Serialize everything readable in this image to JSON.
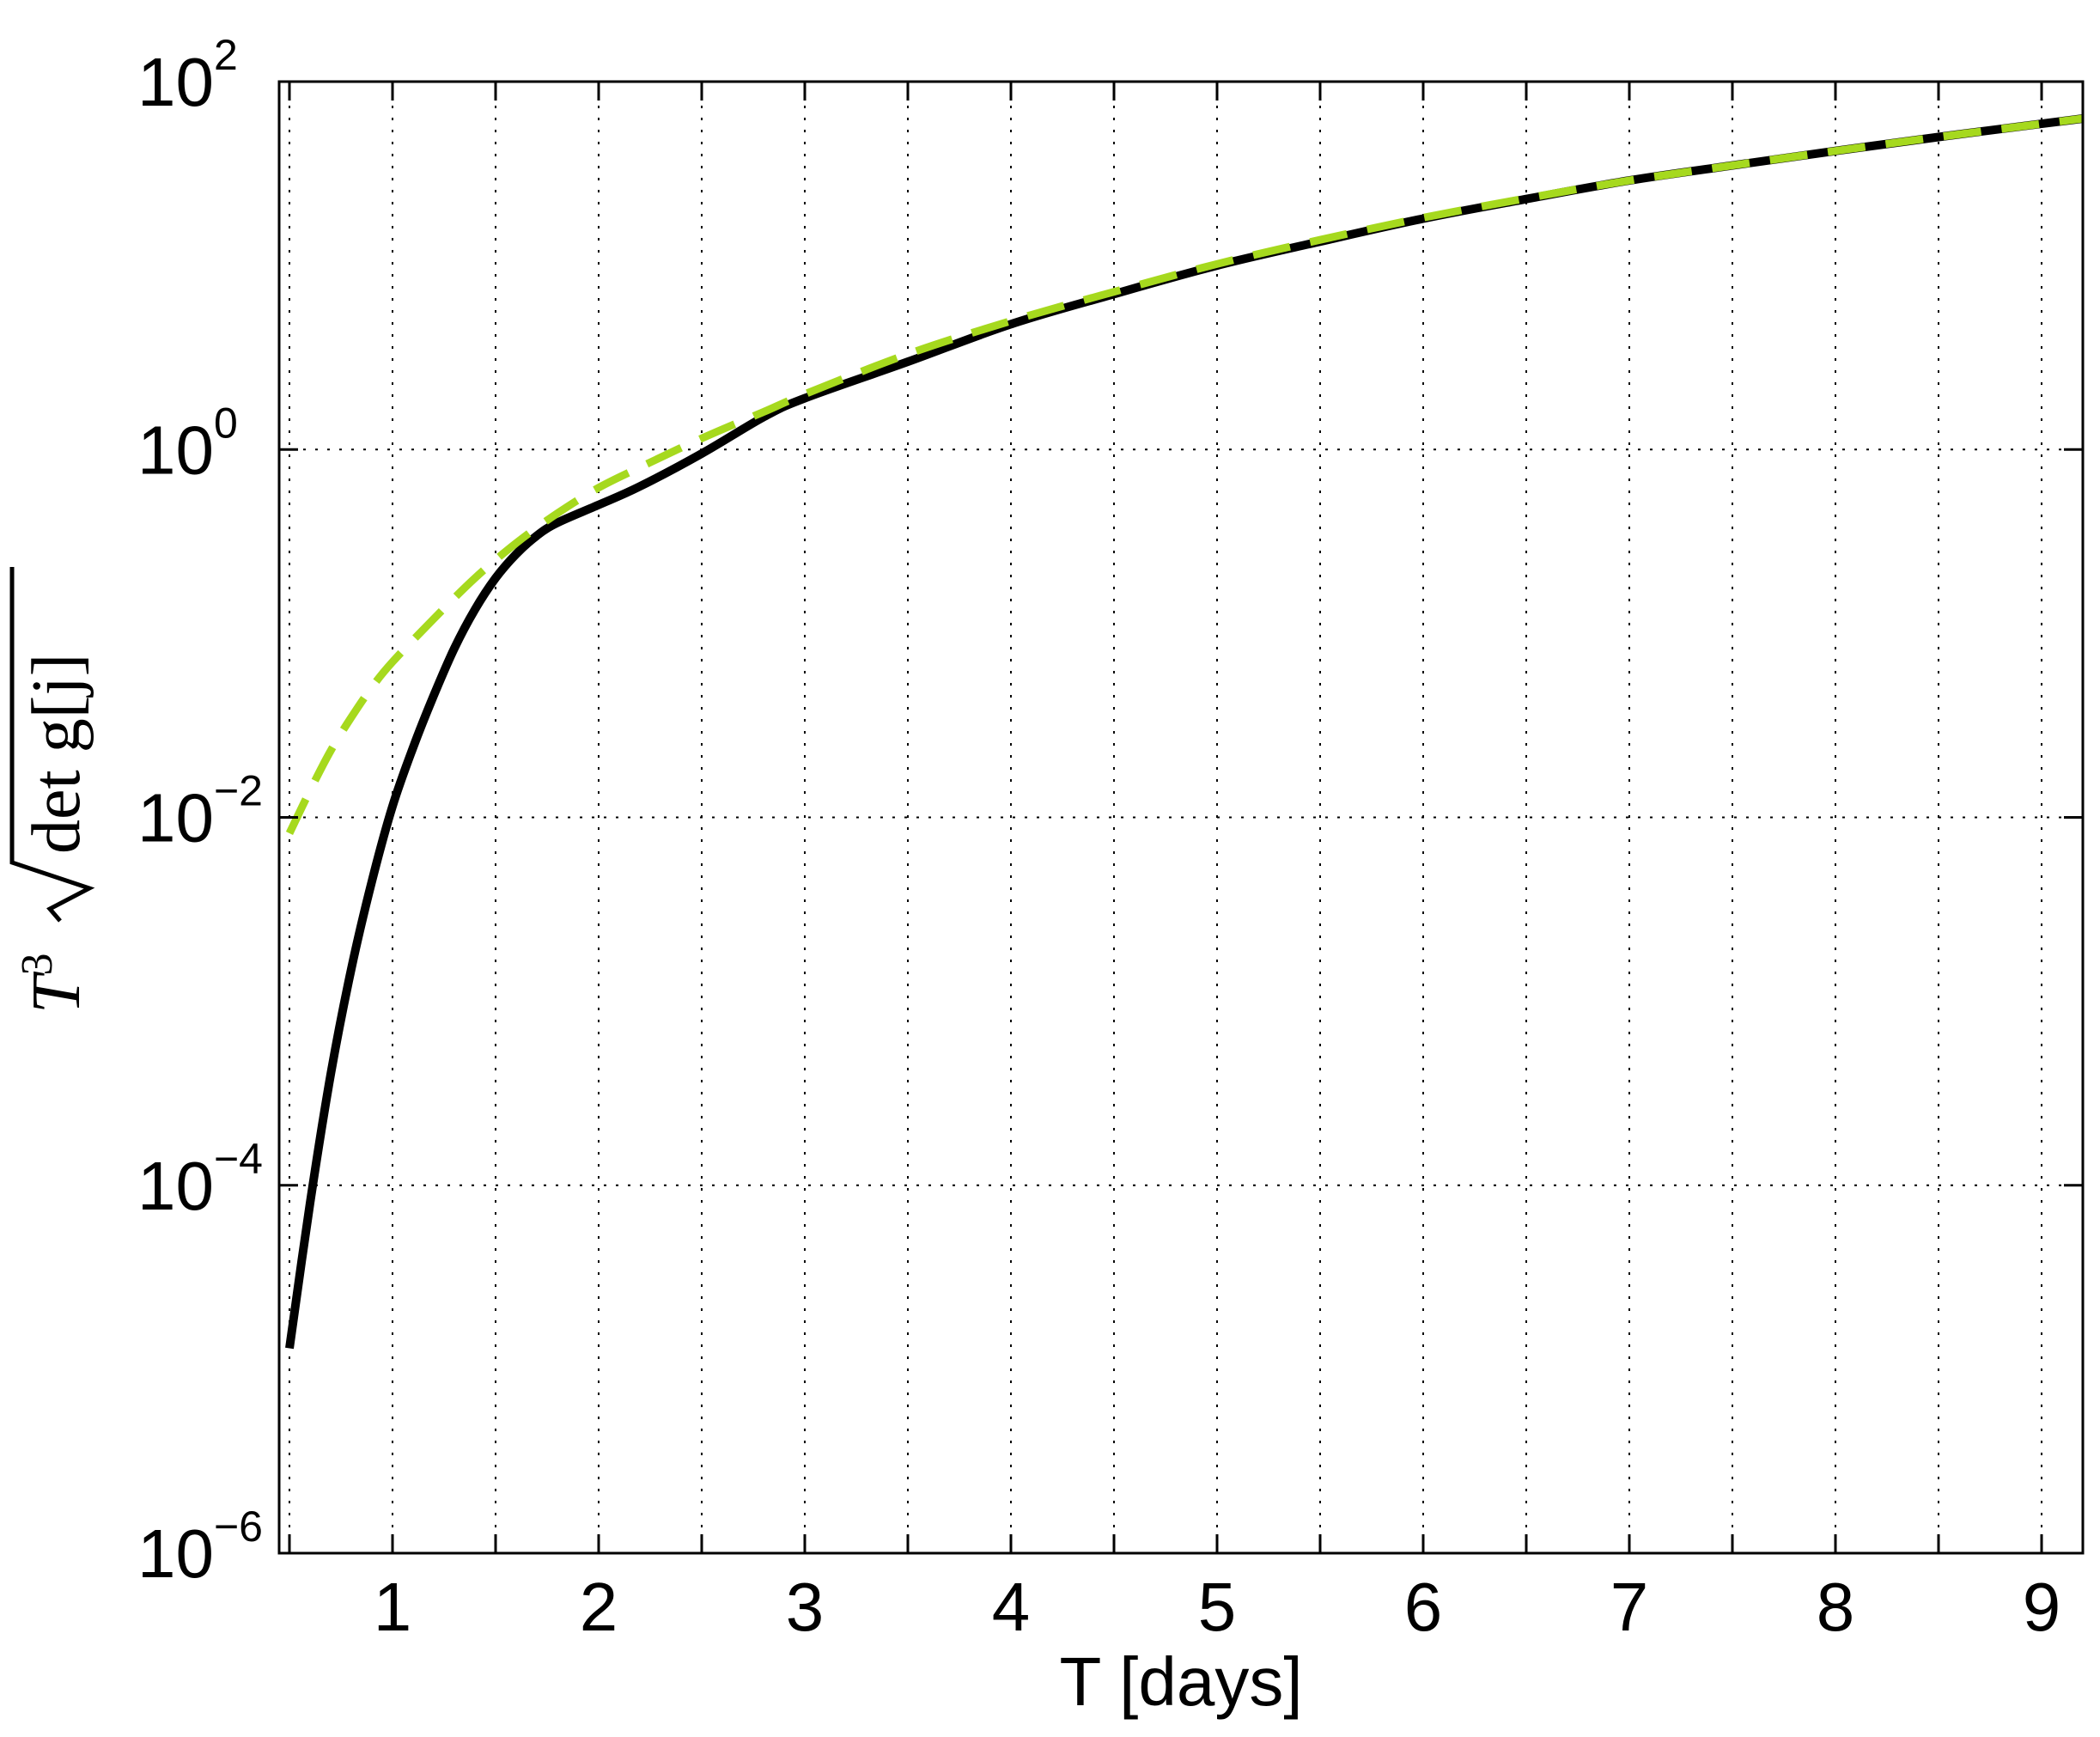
{
  "chart_data": {
    "type": "line",
    "xlabel": "T [days]",
    "ylabel": {
      "base": "T",
      "exponent": "3",
      "radicand": "det g[j]"
    },
    "xlim": [
      0.45,
      9.2
    ],
    "ylim": [
      1e-06,
      100
    ],
    "yscale": "log",
    "grid": true,
    "grid_style": "dotted",
    "x_ticks": [
      {
        "value": 1,
        "label": "1"
      },
      {
        "value": 2,
        "label": "2"
      },
      {
        "value": 3,
        "label": "3"
      },
      {
        "value": 4,
        "label": "4"
      },
      {
        "value": 5,
        "label": "5"
      },
      {
        "value": 6,
        "label": "6"
      },
      {
        "value": 7,
        "label": "7"
      },
      {
        "value": 8,
        "label": "8"
      },
      {
        "value": 9,
        "label": "9"
      }
    ],
    "x_minor_ticks": [
      0.5,
      1.5,
      2.5,
      3.5,
      4.5,
      5.5,
      6.5,
      7.5,
      8.5
    ],
    "y_ticks": [
      {
        "value": 1e-06,
        "base": "10",
        "exp": "−6"
      },
      {
        "value": 0.0001,
        "base": "10",
        "exp": "−4"
      },
      {
        "value": 0.01,
        "base": "10",
        "exp": "−2"
      },
      {
        "value": 1,
        "base": "10",
        "exp": "0"
      },
      {
        "value": 100,
        "base": "10",
        "exp": "2"
      }
    ],
    "series": [
      {
        "style": "solid",
        "color": "#000000",
        "x": [
          0.5,
          0.6,
          0.7,
          0.8,
          0.9,
          1.0,
          1.1,
          1.2,
          1.3,
          1.4,
          1.5,
          1.6,
          1.7,
          1.8,
          2.0,
          2.2,
          2.5,
          2.8,
          3.0,
          3.5,
          4.0,
          4.5,
          5.0,
          5.5,
          6.0,
          6.5,
          7.0,
          7.5,
          8.0,
          8.5,
          9.0,
          9.2
        ],
        "y": [
          1.3e-05,
          8e-05,
          0.0004,
          0.0015,
          0.0045,
          0.0115,
          0.024,
          0.046,
          0.083,
          0.135,
          0.2,
          0.27,
          0.34,
          0.4,
          0.5,
          0.63,
          0.95,
          1.5,
          1.9,
          3.0,
          4.8,
          7.0,
          10,
          13.5,
          18,
          23,
          29,
          35,
          42,
          50,
          59,
          63
        ]
      },
      {
        "style": "dashed",
        "color": "#a6d91e",
        "x": [
          0.5,
          0.6,
          0.7,
          0.8,
          0.9,
          1.0,
          1.2,
          1.4,
          1.6,
          1.8,
          2.0,
          2.2,
          2.5,
          2.8,
          3.0,
          3.5,
          4.0,
          4.5,
          5.0,
          5.5,
          6.0,
          6.5,
          7.0,
          7.5,
          8.0,
          8.5,
          9.0,
          9.2
        ],
        "y": [
          0.0082,
          0.014,
          0.023,
          0.035,
          0.051,
          0.07,
          0.12,
          0.2,
          0.31,
          0.45,
          0.62,
          0.8,
          1.15,
          1.6,
          2.0,
          3.3,
          5.0,
          7.2,
          10.2,
          13.8,
          18.2,
          23.2,
          29,
          35,
          42,
          50,
          59,
          63
        ]
      }
    ]
  }
}
